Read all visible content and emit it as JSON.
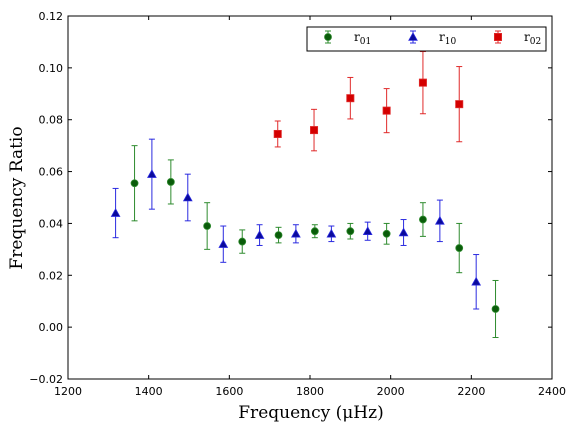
{
  "chart_data": {
    "type": "scatter",
    "xlabel": "Frequency  (μHz)",
    "ylabel": "Frequency Ratio",
    "xlim": [
      1200,
      2400
    ],
    "ylim": [
      -0.02,
      0.12
    ],
    "xticks": [
      1200,
      1400,
      1600,
      1800,
      2000,
      2200,
      2400
    ],
    "yticks": [
      -0.02,
      0.0,
      0.02,
      0.04,
      0.06,
      0.08,
      0.1,
      0.12
    ],
    "xtick_labels": [
      "1200",
      "1400",
      "1600",
      "1800",
      "2000",
      "2200",
      "2400"
    ],
    "ytick_labels": [
      "−0.02",
      "0.00",
      "0.02",
      "0.04",
      "0.06",
      "0.08",
      "0.10",
      "0.12"
    ],
    "grid": false,
    "legend_position": "top-right",
    "series": [
      {
        "name": "r01",
        "label_main": "r",
        "label_sub": "01",
        "marker": "circle",
        "color": "#2e8b2e",
        "fill": "#0a5c0a",
        "points": [
          {
            "x": 1365,
            "y": 0.0555,
            "err": 0.0145
          },
          {
            "x": 1455,
            "y": 0.056,
            "err": 0.0085
          },
          {
            "x": 1545,
            "y": 0.039,
            "err": 0.009
          },
          {
            "x": 1632,
            "y": 0.033,
            "err": 0.0045
          },
          {
            "x": 1722,
            "y": 0.0355,
            "err": 0.003
          },
          {
            "x": 1812,
            "y": 0.037,
            "err": 0.0025
          },
          {
            "x": 1900,
            "y": 0.037,
            "err": 0.003
          },
          {
            "x": 1990,
            "y": 0.036,
            "err": 0.004
          },
          {
            "x": 2080,
            "y": 0.0415,
            "err": 0.0065
          },
          {
            "x": 2170,
            "y": 0.0305,
            "err": 0.0095
          },
          {
            "x": 2260,
            "y": 0.007,
            "err": 0.011
          }
        ]
      },
      {
        "name": "r10",
        "label_main": "r",
        "label_sub": "10",
        "marker": "triangle",
        "color": "#2a2ae0",
        "fill": "#0a0a9c",
        "points": [
          {
            "x": 1318,
            "y": 0.044,
            "err": 0.0095
          },
          {
            "x": 1408,
            "y": 0.059,
            "err": 0.0135
          },
          {
            "x": 1497,
            "y": 0.05,
            "err": 0.009
          },
          {
            "x": 1585,
            "y": 0.032,
            "err": 0.007
          },
          {
            "x": 1675,
            "y": 0.0355,
            "err": 0.004
          },
          {
            "x": 1765,
            "y": 0.036,
            "err": 0.0035
          },
          {
            "x": 1853,
            "y": 0.036,
            "err": 0.003
          },
          {
            "x": 1943,
            "y": 0.037,
            "err": 0.0035
          },
          {
            "x": 2032,
            "y": 0.0365,
            "err": 0.005
          },
          {
            "x": 2122,
            "y": 0.041,
            "err": 0.008
          },
          {
            "x": 2212,
            "y": 0.0175,
            "err": 0.0105
          }
        ]
      },
      {
        "name": "r02",
        "label_main": "r",
        "label_sub": "02",
        "marker": "square",
        "color": "#e02a2a",
        "fill": "#d40000",
        "points": [
          {
            "x": 1720,
            "y": 0.0745,
            "err": 0.005
          },
          {
            "x": 1810,
            "y": 0.076,
            "err": 0.008
          },
          {
            "x": 1900,
            "y": 0.0883,
            "err": 0.008
          },
          {
            "x": 1990,
            "y": 0.0835,
            "err": 0.0085
          },
          {
            "x": 2080,
            "y": 0.0943,
            "err": 0.012
          },
          {
            "x": 2170,
            "y": 0.086,
            "err": 0.0145
          }
        ]
      }
    ]
  }
}
